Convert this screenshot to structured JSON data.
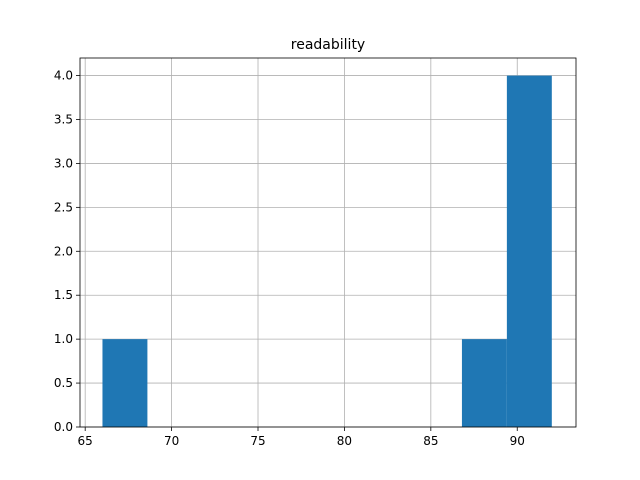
{
  "chart_data": {
    "type": "histogram",
    "title": "readability",
    "bins": [
      66.0,
      68.6,
      71.2,
      73.8,
      76.4,
      79.0,
      81.6,
      84.2,
      86.8,
      89.4,
      92.0
    ],
    "counts": [
      1,
      0,
      0,
      0,
      0,
      0,
      0,
      0,
      1,
      4
    ],
    "color": "#1f77b4",
    "xlim": [
      64.7,
      93.4
    ],
    "xticks": [
      65,
      70,
      75,
      80,
      85,
      90
    ],
    "ylim": [
      0,
      4.2
    ],
    "yticks": [
      {
        "value": 0,
        "label": "0.0"
      },
      0.5,
      {
        "value": 1,
        "label": "1.0"
      },
      1.5,
      {
        "value": 2,
        "label": "2.0"
      },
      2.5,
      {
        "value": 3,
        "label": "3.0"
      },
      3.5,
      {
        "value": 4,
        "label": "4.0"
      }
    ],
    "grid": true
  }
}
